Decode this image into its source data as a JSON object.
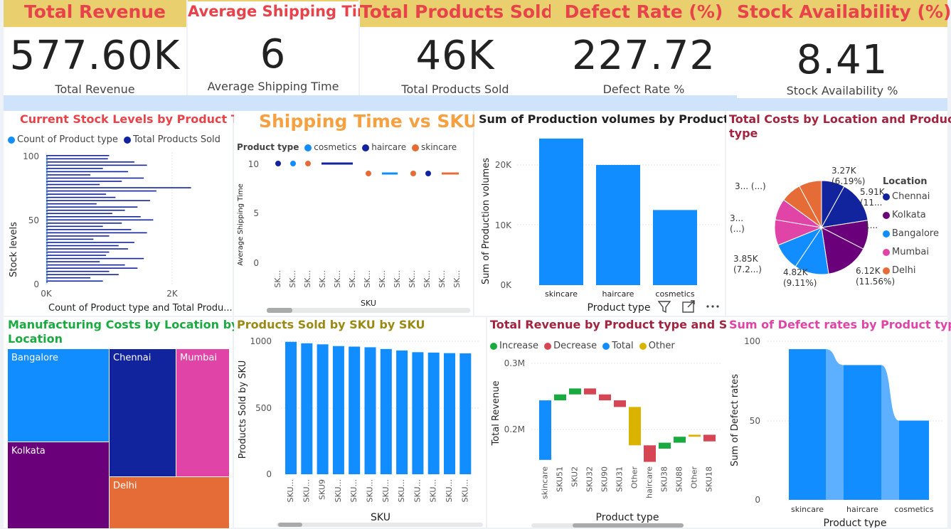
{
  "kpis": [
    {
      "title": "Total Revenue",
      "value": "577.60K",
      "label": "Total Revenue"
    },
    {
      "title": "Average Shipping Time",
      "value": "6",
      "label": "Average Shipping Time"
    },
    {
      "title": "Total Products Sold",
      "value": "46K",
      "label": "Total Products Sold"
    },
    {
      "title": "Defect Rate (%)",
      "value": "227.72",
      "label": "Defect Rate %"
    },
    {
      "title": "Stock Availability (%)",
      "value": "8.41",
      "label": "Stock Availability %"
    }
  ],
  "stock": {
    "title": "Current Stock Levels by Product Type",
    "legend": [
      "Count of Product type",
      "Total Products Sold"
    ],
    "colors": [
      "#118dff",
      "#12239e"
    ],
    "ylabel": "Stock levels",
    "xlabel": "Count of Product type and Total Produ...",
    "yticks": [
      "100",
      "50",
      "0"
    ],
    "xticks": [
      "0K",
      "2K"
    ]
  },
  "shipping": {
    "title": "Shipping Time vs SKU",
    "legend_title": "Product type",
    "legend": [
      "cosmetics",
      "haircare",
      "skincare"
    ],
    "colors": [
      "#118dff",
      "#12239e",
      "#e66c37"
    ],
    "ylabel": "Average Shipping Time",
    "xlabel": "SKU",
    "yticks": [
      "10",
      "5",
      "0"
    ],
    "xtick": "SK..."
  },
  "production": {
    "title": "Sum of Production volumes by Product type",
    "ylabel": "Sum of Production volumes",
    "xlabel": "Product type",
    "yticks": [
      "20K",
      "10K",
      "0K"
    ]
  },
  "costs": {
    "title_line1": "Total Costs by Location and Product",
    "title_line2": "type",
    "legend_title": "Location",
    "legend": [
      "Chennai",
      "Kolkata",
      "Bangalore",
      "Mumbai",
      "Delhi"
    ],
    "colors": [
      "#12239e",
      "#6b007b",
      "#118dff",
      "#e044a7",
      "#e66c37"
    ],
    "labels": [
      {
        "a": "3.27K",
        "b": "(6.19%)"
      },
      {
        "a": "5.91K",
        "b": "(11..."
      },
      {
        "a": "1...",
        "b": ""
      },
      {
        "a": "6.12K",
        "b": "(11.56%)"
      },
      {
        "a": "4.82K",
        "b": "(9.11%)"
      },
      {
        "a": "3.85K",
        "b": "(7.2...)"
      },
      {
        "a": "3...",
        "b": "(...)"
      },
      {
        "a": "3... (...)",
        "b": ""
      }
    ]
  },
  "manufacturing": {
    "title_line1": "Manufacturing Costs by Location by",
    "title_line2": "Location",
    "cells": [
      "Bangalore",
      "Chennai",
      "Mumbai",
      "Kolkata",
      "Delhi"
    ]
  },
  "products_sold": {
    "title": "Products Sold by SKU by SKU",
    "ylabel": "Products Sold by SKU",
    "xlabel": "SKU",
    "yticks": [
      "1000",
      "500",
      "0"
    ]
  },
  "revenue": {
    "title": "Total Revenue by Product type and SKU",
    "legend": [
      "Increase",
      "Decrease",
      "Total",
      "Other"
    ],
    "colors": [
      "#1aab40",
      "#d64554",
      "#118dff",
      "#d9b300"
    ],
    "ylabel": "Total Revenue",
    "xlabel": "Product type",
    "yticks": [
      "0.3M",
      "0.2M"
    ]
  },
  "defect": {
    "title": "Sum of Defect rates by Product type",
    "ylabel": "Sum of Defect rates",
    "xlabel": "Product type",
    "yticks": [
      "100",
      "50",
      "0"
    ]
  },
  "chart_data": [
    {
      "type": "bar",
      "title": "Current Stock Levels by Product Type",
      "orientation": "horizontal",
      "xlabel": "Count of Product type and Total Produ...",
      "ylabel": "Stock levels",
      "xlim": [
        0,
        3000
      ],
      "ylim": [
        0,
        100
      ],
      "series": [
        {
          "name": "Count of Product type",
          "values": [
            1
          ]
        },
        {
          "name": "Total Products Sold",
          "values": [
            1000,
            980,
            1400,
            1600,
            900,
            1300,
            700,
            1550,
            1200,
            850,
            2300,
            1750,
            950,
            1100,
            1650,
            800,
            1450,
            1250,
            1050,
            1500,
            1700,
            1200,
            900,
            1350,
            1600,
            1000,
            750,
            1400,
            1150,
            1300,
            1000,
            950,
            1550,
            850,
            1250,
            1450,
            1000,
            1150,
            700,
            900
          ]
        }
      ]
    },
    {
      "type": "scatter",
      "title": "Shipping Time vs SKU",
      "xlabel": "SKU",
      "ylabel": "Average Shipping Time",
      "ylim": [
        0,
        10
      ],
      "series": [
        {
          "name": "cosmetics",
          "values": [
            10,
            9
          ]
        },
        {
          "name": "haircare",
          "values": [
            10,
            10,
            9
          ]
        },
        {
          "name": "skincare",
          "values": [
            10,
            9,
            9,
            9
          ]
        }
      ]
    },
    {
      "type": "bar",
      "title": "Sum of Production volumes by Product type",
      "categories": [
        "skincare",
        "haircare",
        "cosmetics"
      ],
      "values": [
        24400,
        20000,
        12500
      ],
      "xlabel": "Product type",
      "ylabel": "Sum of Production volumes",
      "ylim": [
        0,
        26000
      ]
    },
    {
      "type": "pie",
      "title": "Total Costs by Location and Product type",
      "categories": [
        "Chennai",
        "Chennai",
        "Kolkata",
        "Kolkata",
        "Bangalore",
        "Bangalore",
        "Mumbai",
        "Mumbai",
        "Delhi",
        "Delhi"
      ],
      "values": [
        3.27,
        5.91,
        4.1,
        6.12,
        4.82,
        3.85,
        3.6,
        3.0,
        2.9,
        3.2
      ]
    },
    {
      "type": "heatmap",
      "title": "Manufacturing Costs by Location by Location",
      "categories": [
        "Bangalore",
        "Chennai",
        "Mumbai",
        "Kolkata",
        "Delhi"
      ]
    },
    {
      "type": "bar",
      "title": "Products Sold by SKU by SKU",
      "categories": [
        "SKU...",
        "SKU...",
        "SKU9",
        "SKU...",
        "SKU...",
        "SKU...",
        "SKU...",
        "SKU...",
        "SKU...",
        "SKU...",
        "SKU...",
        "SKU..."
      ],
      "values": [
        996,
        985,
        977,
        964,
        960,
        955,
        942,
        931,
        918,
        915,
        911,
        909
      ],
      "xlabel": "SKU",
      "ylabel": "Products Sold by SKU",
      "ylim": [
        0,
        1000
      ]
    },
    {
      "type": "bar",
      "title": "Total Revenue by Product type and SKU",
      "categories": [
        "skincare",
        "SKU51",
        "SKU2",
        "SKU32",
        "SKU90",
        "SKU31",
        "Other",
        "haircare",
        "SKU38",
        "SKU88",
        "Other",
        "SKU18"
      ],
      "values": [
        {
          "start": 0.154,
          "end": 0.244,
          "kind": "Total"
        },
        {
          "start": 0.244,
          "end": 0.253,
          "kind": "Increase"
        },
        {
          "start": 0.253,
          "end": 0.262,
          "kind": "Increase"
        },
        {
          "start": 0.262,
          "end": 0.253,
          "kind": "Decrease"
        },
        {
          "start": 0.253,
          "end": 0.244,
          "kind": "Decrease"
        },
        {
          "start": 0.244,
          "end": 0.234,
          "kind": "Decrease"
        },
        {
          "start": 0.234,
          "end": 0.176,
          "kind": "Other"
        },
        {
          "start": 0.176,
          "end": 0.151,
          "kind": "Decrease"
        },
        {
          "start": 0.171,
          "end": 0.18,
          "kind": "Increase"
        },
        {
          "start": 0.18,
          "end": 0.189,
          "kind": "Increase"
        },
        {
          "start": 0.189,
          "end": 0.192,
          "kind": "Other"
        },
        {
          "start": 0.192,
          "end": 0.182,
          "kind": "Decrease"
        }
      ],
      "xlabel": "Product type",
      "ylabel": "Total Revenue"
    },
    {
      "type": "area",
      "title": "Sum of Defect rates by Product type",
      "categories": [
        "skincare",
        "haircare",
        "cosmetics"
      ],
      "values": [
        95,
        85,
        50
      ],
      "xlabel": "Product type",
      "ylabel": "Sum of Defect rates",
      "ylim": [
        0,
        100
      ]
    }
  ],
  "visual_toolbar": [
    "filter-icon",
    "focus-mode-icon",
    "more-options-icon"
  ]
}
